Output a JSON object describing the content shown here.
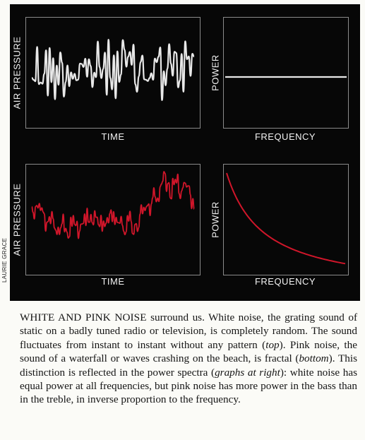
{
  "figure": {
    "panels": [
      {
        "id": "white-waveform",
        "ylabel": "AIR PRESSURE",
        "xlabel": "TIME",
        "color": "#e8e8e8",
        "kind": "white-noise-waveform"
      },
      {
        "id": "white-spectrum",
        "ylabel": "POWER",
        "xlabel": "FREQUENCY",
        "color": "#e8e8e8",
        "kind": "flat-spectrum"
      },
      {
        "id": "pink-waveform",
        "ylabel": "AIR PRESSURE",
        "xlabel": "TIME",
        "color": "#d0162a",
        "kind": "pink-noise-waveform"
      },
      {
        "id": "pink-spectrum",
        "ylabel": "POWER",
        "xlabel": "FREQUENCY",
        "color": "#d0162a",
        "kind": "inverse-frequency-spectrum"
      }
    ],
    "credit": "LAURIE GRACE"
  },
  "caption": {
    "lead": "WHITE AND PINK NOISE",
    "lead_rest": " surround us. White noise, the grating sound of static on a badly tuned radio or television, is completely random. The sound fluctuates from instant to instant without any pattern (",
    "em1": "top",
    "mid1": "). Pink noise, the sound of a waterfall or waves crashing on the beach, is fractal (",
    "em2": "bottom",
    "mid2": "). This distinction is reflected in the power spectra (",
    "em3": "graphs at right",
    "tail": "): white noise has equal power at all frequencies, but pink noise has more power in the bass than in the treble, in inverse proportion to the frequency."
  }
}
